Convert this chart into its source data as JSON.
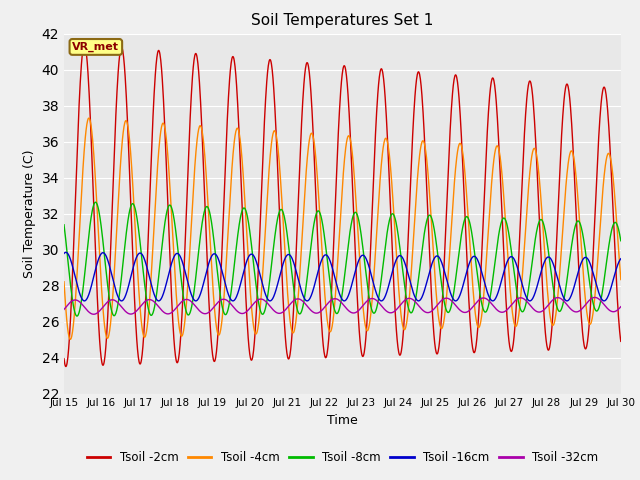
{
  "title": "Soil Temperatures Set 1",
  "xlabel": "Time",
  "ylabel": "Soil Temperature (C)",
  "ylim": [
    22,
    42
  ],
  "yticks": [
    22,
    24,
    26,
    28,
    30,
    32,
    34,
    36,
    38,
    40,
    42
  ],
  "xlim": [
    0,
    15
  ],
  "annotation": "VR_met",
  "fig_bg_color": "#f0f0f0",
  "plot_bg_color": "#e8e8e8",
  "series": [
    {
      "label": "Tsoil -2cm",
      "color": "#cc0000"
    },
    {
      "label": "Tsoil -4cm",
      "color": "#ff8800"
    },
    {
      "label": "Tsoil -8cm",
      "color": "#00bb00"
    },
    {
      "label": "Tsoil -16cm",
      "color": "#0000cc"
    },
    {
      "label": "Tsoil -32cm",
      "color": "#aa00aa"
    }
  ],
  "xtick_labels": [
    "Jul 15",
    "Jul 16",
    "Jul 17",
    "Jul 18",
    "Jul 19",
    "Jul 20",
    "Jul 21",
    "Jul 22",
    "Jul 23",
    "Jul 24",
    "Jul 25",
    "Jul 26",
    "Jul 27",
    "Jul 28",
    "Jul 29",
    "Jul 30"
  ],
  "xtick_positions": [
    0,
    1,
    2,
    3,
    4,
    5,
    6,
    7,
    8,
    9,
    10,
    11,
    12,
    13,
    14,
    15
  ],
  "series_params": [
    {
      "mean": 32.5,
      "amplitude": 9.0,
      "phase": 0.3,
      "trend_amp": -0.12,
      "trend_mean": -0.05
    },
    {
      "mean": 31.2,
      "amplitude": 6.2,
      "phase": 0.42,
      "trend_amp": -0.1,
      "trend_mean": -0.04
    },
    {
      "mean": 29.5,
      "amplitude": 3.2,
      "phase": 0.6,
      "trend_amp": -0.05,
      "trend_mean": -0.03
    },
    {
      "mean": 28.5,
      "amplitude": 1.35,
      "phase": 0.8,
      "trend_amp": -0.01,
      "trend_mean": -0.01
    },
    {
      "mean": 26.8,
      "amplitude": 0.4,
      "phase": 1.05,
      "trend_amp": 0.0,
      "trend_mean": 0.01
    }
  ]
}
